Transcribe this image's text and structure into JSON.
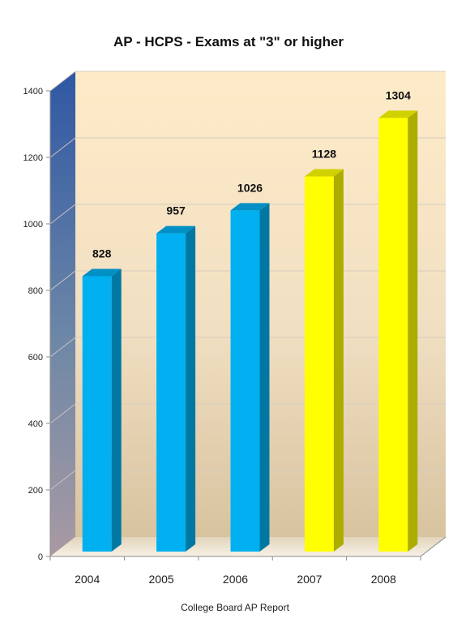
{
  "chart_data": {
    "type": "bar",
    "title": "AP - HCPS - Exams at \"3\" or higher",
    "source_note": "College Board AP Report",
    "categories": [
      "2004",
      "2005",
      "2006",
      "2007",
      "2008"
    ],
    "series": [
      {
        "values": [
          828,
          957,
          1026,
          1128,
          1304
        ]
      }
    ],
    "data_labels": [
      "828",
      "957",
      "1026",
      "1128",
      "1304"
    ],
    "bar_colors": [
      "#00b0f0",
      "#00b0f0",
      "#00b0f0",
      "#ffff00",
      "#ffff00"
    ],
    "yticks": [
      "0",
      "200",
      "400",
      "600",
      "800",
      "1000",
      "1200",
      "1400"
    ],
    "ylim": [
      0,
      1400
    ],
    "grid": true,
    "legend": "none",
    "style": "3d"
  }
}
